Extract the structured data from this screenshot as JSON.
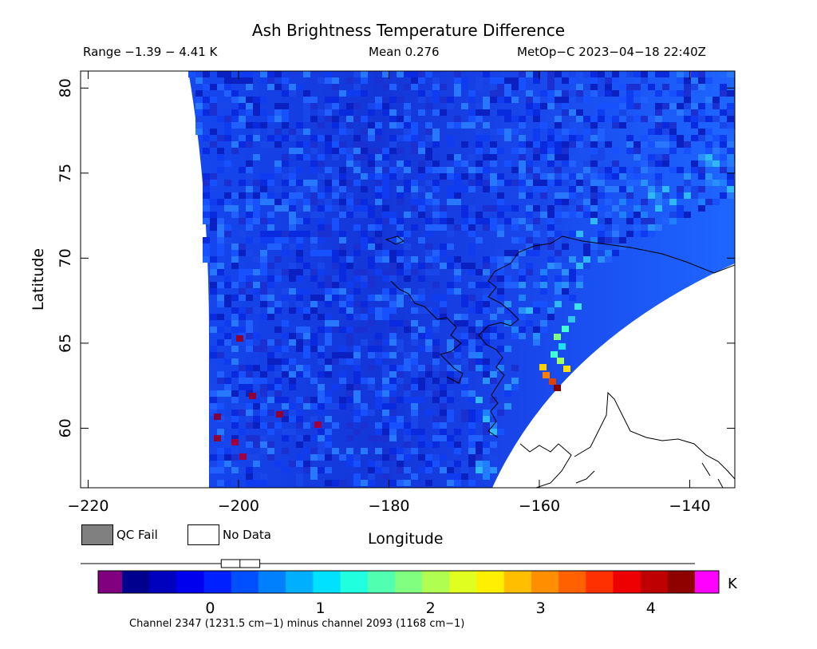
{
  "title": "Ash Brightness Temperature Difference",
  "header": {
    "range": "Range −1.39 − 4.41 K",
    "mean": "Mean 0.276",
    "satellite": "MetOp−C 2023−04−18 22:40Z"
  },
  "axes": {
    "xlabel": "Longitude",
    "ylabel": "Latitude",
    "x_ticks": [
      {
        "value": -220,
        "label": "−220"
      },
      {
        "value": -200,
        "label": "−200"
      },
      {
        "value": -180,
        "label": "−180"
      },
      {
        "value": -160,
        "label": "−160"
      },
      {
        "value": -140,
        "label": "−140"
      }
    ],
    "y_ticks": [
      {
        "value": 60,
        "label": "60"
      },
      {
        "value": 65,
        "label": "65"
      },
      {
        "value": 70,
        "label": "70"
      },
      {
        "value": 75,
        "label": "75"
      },
      {
        "value": 80,
        "label": "80"
      }
    ],
    "xlim": [
      -221,
      -134
    ],
    "ylim": [
      56.5,
      81
    ]
  },
  "legend": {
    "qc_fail": "QC Fail",
    "no_data": "No Data",
    "qc_fail_color": "#808080",
    "no_data_color": "#ffffff"
  },
  "colorbar": {
    "unit": "K",
    "vmin": -0.8,
    "vmax": 4.4,
    "ticks": [
      {
        "value": 0,
        "label": "0"
      },
      {
        "value": 1,
        "label": "1"
      },
      {
        "value": 2,
        "label": "2"
      },
      {
        "value": 3,
        "label": "3"
      },
      {
        "value": 4,
        "label": "4"
      }
    ],
    "under_color": "#800080",
    "over_color": "#ff00ff",
    "colors": [
      "#00008f",
      "#0000bf",
      "#0000ef",
      "#0020ff",
      "#0050ff",
      "#0080ff",
      "#00b0ff",
      "#00e0ff",
      "#20ffdf",
      "#50ffaf",
      "#80ff80",
      "#b0ff50",
      "#e0ff20",
      "#ffef00",
      "#ffbf00",
      "#ff8f00",
      "#ff6000",
      "#ff3000",
      "#ef0000",
      "#bf0000",
      "#8f0000"
    ]
  },
  "box_marker": {
    "low": 0.1,
    "median": 0.27,
    "high": 0.45
  },
  "channel_note": "Channel 2347 (1231.5 cm−1) minus channel 2093 (1168 cm−1)"
}
